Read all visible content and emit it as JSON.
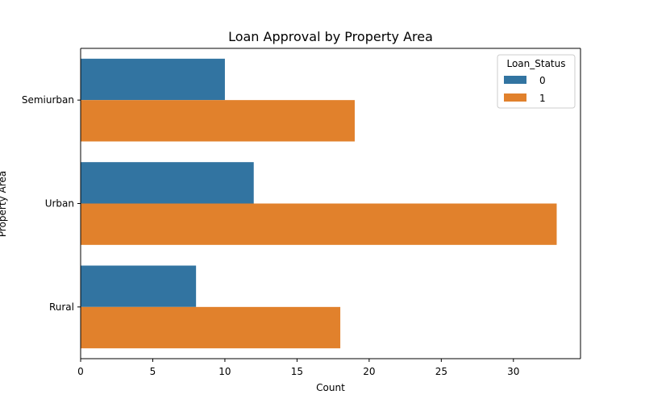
{
  "chart_data": {
    "type": "bar",
    "orientation": "horizontal",
    "title": "Loan Approval by Property Area",
    "xlabel": "Count",
    "ylabel": "Property Area",
    "categories": [
      "Semiurban",
      "Urban",
      "Rural"
    ],
    "series": [
      {
        "name": "0",
        "values": [
          10,
          12,
          8
        ],
        "color": "#3274a1"
      },
      {
        "name": "1",
        "values": [
          19,
          33,
          18
        ],
        "color": "#e1812c"
      }
    ],
    "xlim": [
      0,
      34.65
    ],
    "xticks": [
      0,
      5,
      10,
      15,
      20,
      25,
      30
    ],
    "legend": {
      "title": "Loan_Status",
      "placement": "top-right"
    },
    "grid": false
  }
}
